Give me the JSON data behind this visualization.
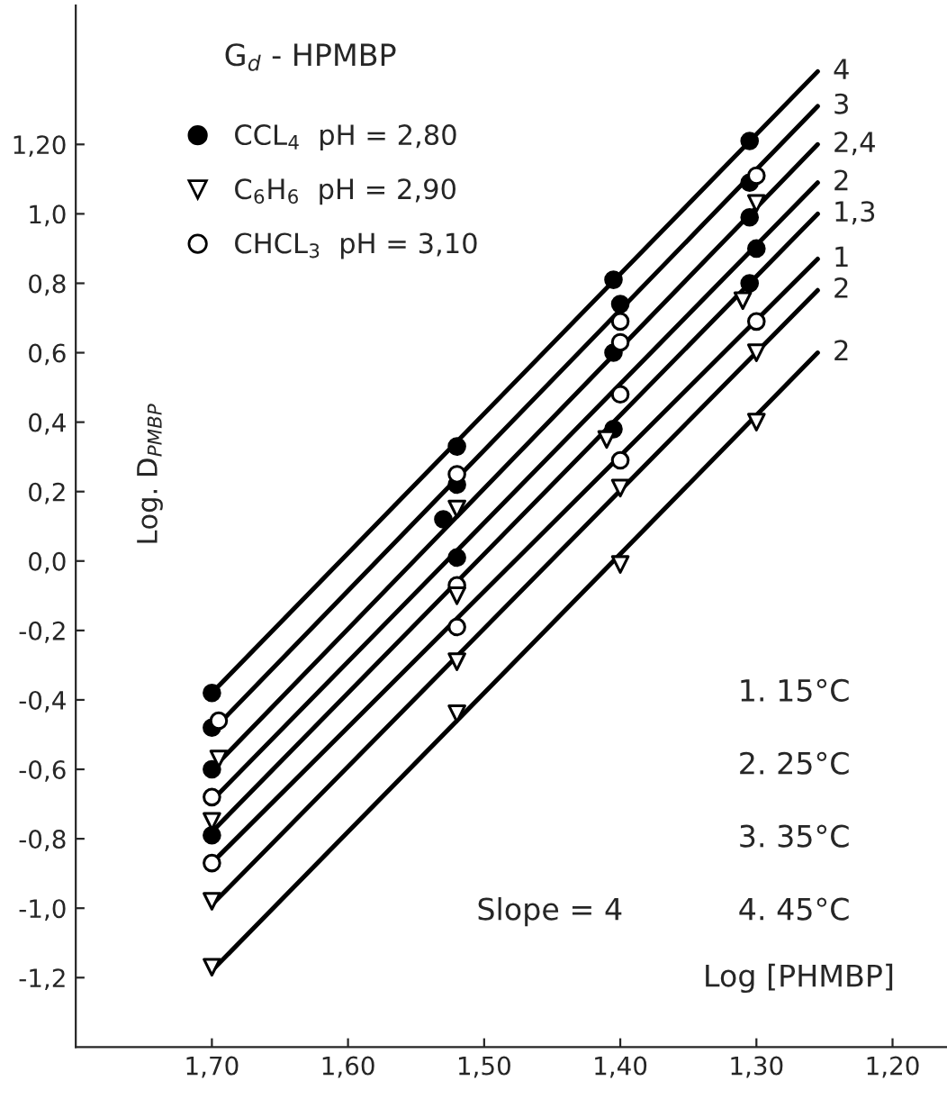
{
  "chart_data": {
    "type": "scatter",
    "xlabel": "Log [PHMBP]",
    "ylabel": "Log. D$_{PMBP}$",
    "xlim": [
      1.8,
      1.16
    ],
    "ylim": [
      -1.4,
      1.6
    ],
    "xticks": [
      {
        "value": 1.7,
        "label": "1,70"
      },
      {
        "value": 1.6,
        "label": "1,60"
      },
      {
        "value": 1.5,
        "label": "1,50"
      },
      {
        "value": 1.4,
        "label": "1,40"
      },
      {
        "value": 1.3,
        "label": "1,30"
      },
      {
        "value": 1.2,
        "label": "1,20"
      }
    ],
    "yticks": [
      {
        "value": 1.2,
        "label": "1,20"
      },
      {
        "value": 1.0,
        "label": "1,0"
      },
      {
        "value": 0.8,
        "label": "0,8"
      },
      {
        "value": 0.6,
        "label": "0,6"
      },
      {
        "value": 0.4,
        "label": "0,4"
      },
      {
        "value": 0.2,
        "label": "0,2"
      },
      {
        "value": 0.0,
        "label": "0,0"
      },
      {
        "value": -0.2,
        "label": "-0,2"
      },
      {
        "value": -0.4,
        "label": "-0,4"
      },
      {
        "value": -0.6,
        "label": "-0,6"
      },
      {
        "value": -0.8,
        "label": "-0,8"
      },
      {
        "value": -1.0,
        "label": "-1,0"
      },
      {
        "value": -1.2,
        "label": "-1,2"
      }
    ],
    "grid": false,
    "legend": "top left",
    "annotations": [
      "G$_{d}$ - HPMBP",
      "1. 15°C",
      "2. 25°C",
      "3. 35°C",
      "4. 45°C",
      "Slope = 4"
    ],
    "series": [
      {
        "name": "CCL$_{4}$  pH = 2,80",
        "marker": "circle",
        "color": "#000000",
        "x": [
          1.7,
          1.7,
          1.7,
          1.7,
          1.52,
          1.52,
          1.53,
          1.52,
          1.405,
          1.4,
          1.405,
          1.405,
          1.305,
          1.305,
          1.305,
          1.3,
          1.305
        ],
        "values": [
          -0.38,
          -0.48,
          -0.6,
          -0.79,
          0.33,
          0.22,
          0.12,
          0.01,
          0.81,
          0.74,
          0.6,
          0.38,
          1.21,
          1.09,
          0.99,
          0.9,
          0.8
        ]
      },
      {
        "name": "C$_{6}$H$_{6}$  pH = 2,90",
        "marker": "triangle",
        "color": "#ffffff",
        "x": [
          1.695,
          1.7,
          1.7,
          1.7,
          1.52,
          1.52,
          1.52,
          1.52,
          1.41,
          1.4,
          1.4,
          1.3,
          1.31,
          1.3,
          1.3
        ],
        "values": [
          -0.57,
          -0.75,
          -0.98,
          -1.17,
          0.15,
          -0.1,
          -0.29,
          -0.44,
          0.35,
          0.21,
          -0.01,
          1.03,
          0.75,
          0.6,
          0.4
        ]
      },
      {
        "name": "CHCL$_{3}$  pH = 3,10",
        "marker": "circle",
        "color": "#ffffff",
        "x": [
          1.695,
          1.7,
          1.7,
          1.52,
          1.52,
          1.52,
          1.4,
          1.4,
          1.4,
          1.4,
          1.3,
          1.3
        ],
        "values": [
          -0.46,
          -0.68,
          -0.87,
          0.25,
          -0.07,
          -0.19,
          0.69,
          0.63,
          0.48,
          0.29,
          1.11,
          0.69
        ]
      },
      {
        "name": "4",
        "type": "line",
        "color": "#000000",
        "x": [
          1.7,
          1.255
        ],
        "values": [
          -0.38,
          1.41
        ]
      },
      {
        "name": "3",
        "type": "line",
        "color": "#000000",
        "x": [
          1.695,
          1.255
        ],
        "values": [
          -0.47,
          1.31
        ]
      },
      {
        "name": "2,4",
        "type": "line",
        "color": "#000000",
        "x": [
          1.695,
          1.255
        ],
        "values": [
          -0.58,
          1.2
        ]
      },
      {
        "name": "2",
        "type": "line",
        "color": "#000000",
        "x": [
          1.7,
          1.255
        ],
        "values": [
          -0.69,
          1.09
        ]
      },
      {
        "name": "1,3",
        "type": "line",
        "color": "#000000",
        "x": [
          1.7,
          1.255
        ],
        "values": [
          -0.78,
          1.0
        ]
      },
      {
        "name": "1",
        "type": "line",
        "color": "#000000",
        "x": [
          1.695,
          1.255
        ],
        "values": [
          -0.85,
          0.87
        ]
      },
      {
        "name": "2",
        "type": "line",
        "color": "#000000",
        "x": [
          1.7,
          1.255
        ],
        "values": [
          -0.99,
          0.78
        ]
      },
      {
        "name": "2",
        "type": "line",
        "color": "#000000",
        "x": [
          1.7,
          1.255
        ],
        "values": [
          -1.18,
          0.6
        ]
      }
    ]
  }
}
